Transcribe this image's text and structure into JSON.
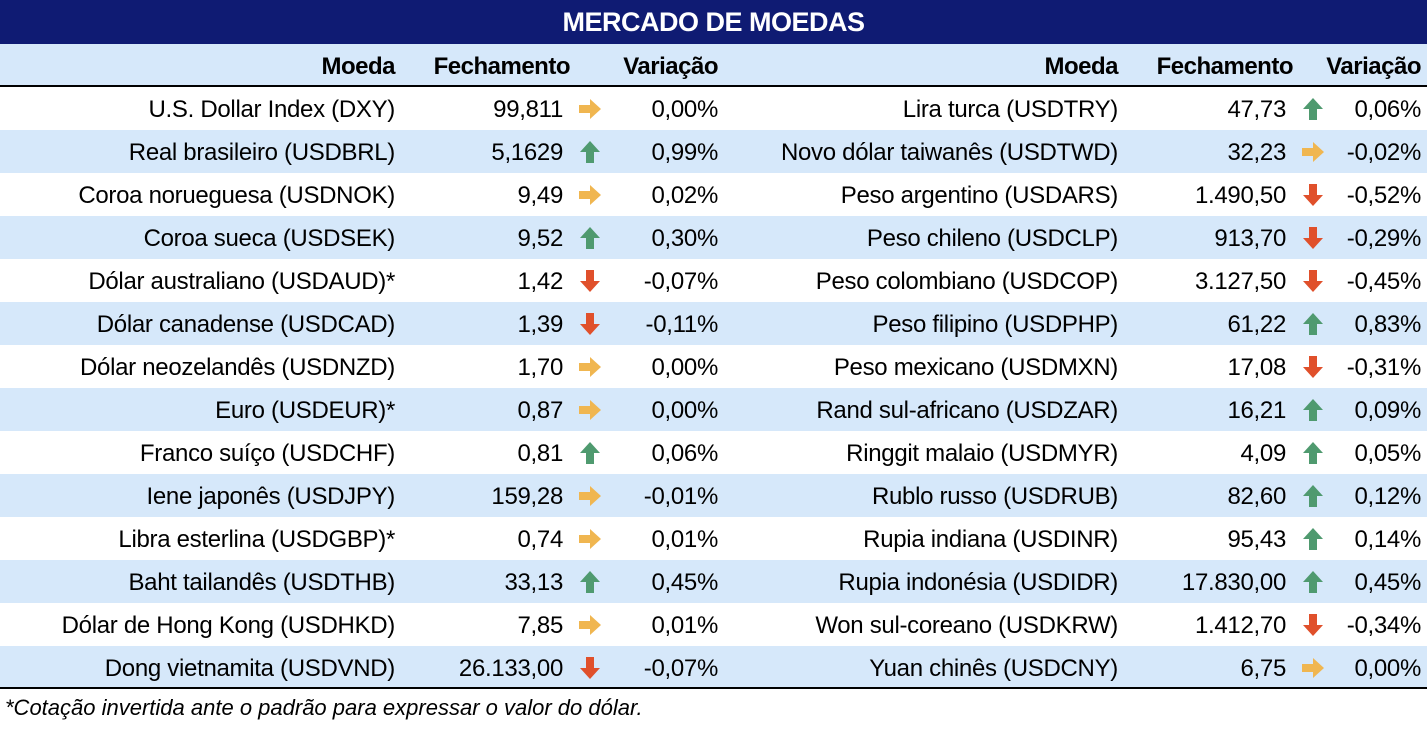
{
  "title": "MERCADO DE MOEDAS",
  "headers": {
    "moeda": "Moeda",
    "fechamento": "Fechamento",
    "variacao": "Variação"
  },
  "colors": {
    "title_bg": "#0f1b73",
    "band": "#d6e8fa",
    "up": "#4f9a6f",
    "flat": "#f0b650",
    "down": "#e0502b"
  },
  "left": [
    {
      "name": "U.S. Dollar Index (DXY)",
      "close": "99,811",
      "icon": "flat",
      "change": "0,00%"
    },
    {
      "name": "Real brasileiro (USDBRL)",
      "close": "5,1629",
      "icon": "up",
      "change": "0,99%"
    },
    {
      "name": "Coroa norueguesa (USDNOK)",
      "close": "9,49",
      "icon": "flat",
      "change": "0,02%"
    },
    {
      "name": "Coroa sueca (USDSEK)",
      "close": "9,52",
      "icon": "up",
      "change": "0,30%"
    },
    {
      "name": "Dólar australiano (USDAUD)*",
      "close": "1,42",
      "icon": "down",
      "change": "-0,07%"
    },
    {
      "name": "Dólar canadense (USDCAD)",
      "close": "1,39",
      "icon": "down",
      "change": "-0,11%"
    },
    {
      "name": "Dólar neozelandês (USDNZD)",
      "close": "1,70",
      "icon": "flat",
      "change": "0,00%"
    },
    {
      "name": "Euro (USDEUR)*",
      "close": "0,87",
      "icon": "flat",
      "change": "0,00%"
    },
    {
      "name": "Franco suíço (USDCHF)",
      "close": "0,81",
      "icon": "up",
      "change": "0,06%"
    },
    {
      "name": "Iene japonês (USDJPY)",
      "close": "159,28",
      "icon": "flat",
      "change": "-0,01%"
    },
    {
      "name": "Libra esterlina (USDGBP)*",
      "close": "0,74",
      "icon": "flat",
      "change": "0,01%"
    },
    {
      "name": "Baht tailandês (USDTHB)",
      "close": "33,13",
      "icon": "up",
      "change": "0,45%"
    },
    {
      "name": "Dólar de Hong Kong (USDHKD)",
      "close": "7,85",
      "icon": "flat",
      "change": "0,01%"
    },
    {
      "name": "Dong vietnamita (USDVND)",
      "close": "26.133,00",
      "icon": "down",
      "change": "-0,07%"
    }
  ],
  "right": [
    {
      "name": "Lira turca (USDTRY)",
      "close": "47,73",
      "icon": "up",
      "change": "0,06%"
    },
    {
      "name": "Novo dólar taiwanês (USDTWD)",
      "close": "32,23",
      "icon": "flat",
      "change": "-0,02%"
    },
    {
      "name": "Peso argentino (USDARS)",
      "close": "1.490,50",
      "icon": "down",
      "change": "-0,52%"
    },
    {
      "name": "Peso chileno (USDCLP)",
      "close": "913,70",
      "icon": "down",
      "change": "-0,29%"
    },
    {
      "name": "Peso colombiano (USDCOP)",
      "close": "3.127,50",
      "icon": "down",
      "change": "-0,45%"
    },
    {
      "name": "Peso filipino (USDPHP)",
      "close": "61,22",
      "icon": "up",
      "change": "0,83%"
    },
    {
      "name": "Peso mexicano (USDMXN)",
      "close": "17,08",
      "icon": "down",
      "change": "-0,31%"
    },
    {
      "name": "Rand sul-africano (USDZAR)",
      "close": "16,21",
      "icon": "up",
      "change": "0,09%"
    },
    {
      "name": "Ringgit malaio (USDMYR)",
      "close": "4,09",
      "icon": "up",
      "change": "0,05%"
    },
    {
      "name": "Rublo russo (USDRUB)",
      "close": "82,60",
      "icon": "up",
      "change": "0,12%"
    },
    {
      "name": "Rupia indiana (USDINR)",
      "close": "95,43",
      "icon": "up",
      "change": "0,14%"
    },
    {
      "name": "Rupia indonésia (USDIDR)",
      "close": "17.830,00",
      "icon": "up",
      "change": "0,45%"
    },
    {
      "name": "Won sul-coreano (USDKRW)",
      "close": "1.412,70",
      "icon": "down",
      "change": "-0,34%"
    },
    {
      "name": "Yuan chinês (USDCNY)",
      "close": "6,75",
      "icon": "flat",
      "change": "0,00%"
    }
  ],
  "footnote": "*Cotação invertida ante o padrão para expressar o valor do dólar."
}
